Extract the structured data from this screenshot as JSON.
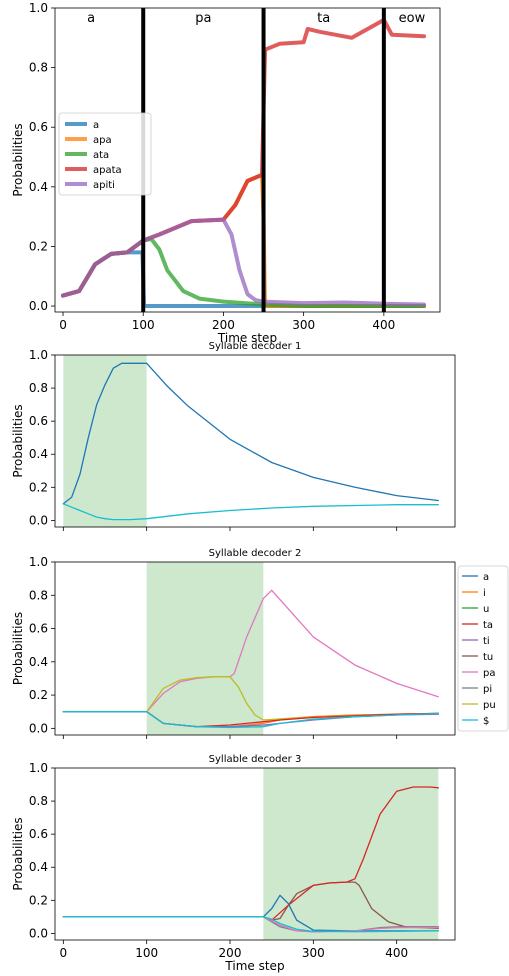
{
  "chart_data": [
    {
      "type": "line",
      "xlabel": "Time step",
      "ylabel": "Probabilities",
      "xlim": [
        -10,
        470
      ],
      "ylim": [
        -0.02,
        1.0
      ],
      "xticks": [
        0,
        100,
        200,
        300,
        400
      ],
      "yticks": [
        0.0,
        0.2,
        0.4,
        0.6,
        0.8,
        1.0
      ],
      "legend_placement": "center-left",
      "segments": [
        {
          "label": "a",
          "x": 35
        },
        {
          "label": "pa",
          "x": 175
        },
        {
          "label": "ta",
          "x": 325
        },
        {
          "label": "eow",
          "x": 435
        }
      ],
      "boundaries": [
        100,
        250,
        400
      ],
      "series": [
        {
          "name": "a",
          "color": "#1f77b4",
          "x": [
            0,
            20,
            40,
            60,
            80,
            99,
            100,
            101,
            450
          ],
          "y": [
            0.035,
            0.05,
            0.14,
            0.175,
            0.18,
            0.18,
            0.1,
            0.0,
            0.0
          ]
        },
        {
          "name": "apa",
          "color": "#ff7f0e",
          "x": [
            0,
            20,
            40,
            60,
            80,
            100,
            120,
            160,
            200,
            215,
            230,
            248,
            250,
            252,
            300,
            450
          ],
          "y": [
            0.035,
            0.05,
            0.14,
            0.175,
            0.18,
            0.22,
            0.24,
            0.285,
            0.29,
            0.34,
            0.42,
            0.44,
            0.3,
            0.0,
            0.0,
            0.0
          ]
        },
        {
          "name": "ata",
          "color": "#2ca02c",
          "x": [
            0,
            20,
            40,
            60,
            80,
            100,
            110,
            120,
            130,
            150,
            170,
            200,
            250,
            300,
            450
          ],
          "y": [
            0.035,
            0.05,
            0.14,
            0.175,
            0.18,
            0.22,
            0.225,
            0.19,
            0.12,
            0.05,
            0.025,
            0.015,
            0.005,
            0.0,
            0.0
          ]
        },
        {
          "name": "apata",
          "color": "#d62728",
          "x": [
            0,
            20,
            40,
            60,
            80,
            100,
            120,
            160,
            200,
            215,
            230,
            248,
            252,
            270,
            300,
            305,
            320,
            360,
            380,
            400,
            410,
            450
          ],
          "y": [
            0.035,
            0.05,
            0.14,
            0.175,
            0.18,
            0.22,
            0.24,
            0.285,
            0.29,
            0.34,
            0.42,
            0.44,
            0.86,
            0.88,
            0.885,
            0.93,
            0.92,
            0.9,
            0.93,
            0.96,
            0.91,
            0.905
          ]
        },
        {
          "name": "apiti",
          "color": "#9467bd",
          "x": [
            0,
            20,
            40,
            60,
            80,
            100,
            120,
            160,
            200,
            210,
            220,
            230,
            240,
            250,
            300,
            350,
            400,
            450
          ],
          "y": [
            0.035,
            0.05,
            0.14,
            0.175,
            0.18,
            0.22,
            0.24,
            0.285,
            0.29,
            0.24,
            0.12,
            0.04,
            0.02,
            0.015,
            0.01,
            0.012,
            0.008,
            0.005
          ]
        }
      ]
    },
    {
      "type": "line",
      "title": "Syllable decoder 1",
      "ylabel": "Probabilities",
      "xlim": [
        -10,
        470
      ],
      "ylim": [
        -0.04,
        1.0
      ],
      "xticks": [
        0,
        100,
        200,
        300,
        400
      ],
      "yticks": [
        0.0,
        0.2,
        0.4,
        0.6,
        0.8,
        1.0
      ],
      "highlight": [
        0,
        100
      ],
      "series": [
        {
          "name": "a",
          "color": "#1f77b4",
          "x": [
            0,
            10,
            20,
            30,
            40,
            50,
            60,
            70,
            80,
            90,
            100,
            125,
            150,
            200,
            250,
            300,
            350,
            400,
            450
          ],
          "y": [
            0.1,
            0.14,
            0.28,
            0.5,
            0.7,
            0.82,
            0.92,
            0.95,
            0.95,
            0.95,
            0.95,
            0.81,
            0.69,
            0.49,
            0.35,
            0.26,
            0.2,
            0.15,
            0.12
          ]
        },
        {
          "name": "$",
          "color": "#17becf",
          "x": [
            0,
            10,
            20,
            30,
            40,
            50,
            60,
            80,
            100,
            150,
            200,
            250,
            300,
            350,
            400,
            450
          ],
          "y": [
            0.1,
            0.08,
            0.06,
            0.04,
            0.02,
            0.01,
            0.005,
            0.005,
            0.01,
            0.04,
            0.06,
            0.075,
            0.085,
            0.09,
            0.095,
            0.095
          ]
        }
      ]
    },
    {
      "type": "line",
      "title": "Syllable decoder 2",
      "ylabel": "Probabilities",
      "xlim": [
        -10,
        470
      ],
      "ylim": [
        -0.04,
        1.0
      ],
      "xticks": [
        0,
        100,
        200,
        300,
        400
      ],
      "yticks": [
        0.0,
        0.2,
        0.4,
        0.6,
        0.8,
        1.0
      ],
      "highlight": [
        100,
        240
      ],
      "legend_placement": "right",
      "legend": [
        {
          "name": "a",
          "color": "#1f77b4"
        },
        {
          "name": "i",
          "color": "#ff7f0e"
        },
        {
          "name": "u",
          "color": "#2ca02c"
        },
        {
          "name": "ta",
          "color": "#d62728"
        },
        {
          "name": "ti",
          "color": "#9467bd"
        },
        {
          "name": "tu",
          "color": "#8c564b"
        },
        {
          "name": "pa",
          "color": "#e377c2"
        },
        {
          "name": "pi",
          "color": "#7f7f7f"
        },
        {
          "name": "pu",
          "color": "#bcbd22"
        },
        {
          "name": "$",
          "color": "#17becf"
        }
      ],
      "series": [
        {
          "name": "pa",
          "color": "#e377c2",
          "x": [
            0,
            100,
            120,
            140,
            160,
            180,
            200,
            205,
            220,
            240,
            250,
            300,
            350,
            400,
            450
          ],
          "y": [
            0.1,
            0.1,
            0.21,
            0.28,
            0.3,
            0.31,
            0.31,
            0.33,
            0.55,
            0.78,
            0.83,
            0.55,
            0.38,
            0.27,
            0.19
          ]
        },
        {
          "name": "pu",
          "color": "#bcbd22",
          "x": [
            0,
            100,
            110,
            120,
            140,
            160,
            180,
            200,
            210,
            220,
            230,
            240,
            300,
            350,
            400,
            450
          ],
          "y": [
            0.1,
            0.1,
            0.17,
            0.24,
            0.29,
            0.305,
            0.31,
            0.31,
            0.25,
            0.15,
            0.08,
            0.05,
            0.07,
            0.08,
            0.085,
            0.09
          ]
        },
        {
          "name": "i",
          "color": "#ff7f0e",
          "x": [
            0,
            100,
            120,
            160,
            200,
            240,
            260,
            300,
            350,
            400,
            450
          ],
          "y": [
            0.1,
            0.1,
            0.03,
            0.01,
            0.01,
            0.03,
            0.05,
            0.07,
            0.08,
            0.085,
            0.09
          ]
        },
        {
          "name": "ta",
          "color": "#d62728",
          "x": [
            0,
            100,
            120,
            160,
            200,
            240,
            260,
            300,
            350,
            400,
            450
          ],
          "y": [
            0.1,
            0.1,
            0.03,
            0.01,
            0.02,
            0.04,
            0.05,
            0.065,
            0.075,
            0.085,
            0.09
          ]
        },
        {
          "name": "ti",
          "color": "#9467bd",
          "x": [
            0,
            100,
            120,
            160,
            200,
            240,
            260,
            300,
            350,
            400,
            450
          ],
          "y": [
            0.1,
            0.1,
            0.03,
            0.01,
            0.01,
            0.02,
            0.03,
            0.05,
            0.07,
            0.08,
            0.085
          ]
        },
        {
          "name": "$",
          "color": "#17becf",
          "x": [
            0,
            100,
            120,
            160,
            200,
            240,
            260,
            300,
            350,
            400,
            450
          ],
          "y": [
            0.1,
            0.1,
            0.03,
            0.01,
            0.005,
            0.01,
            0.03,
            0.055,
            0.07,
            0.08,
            0.09
          ]
        }
      ]
    },
    {
      "type": "line",
      "title": "Syllable decoder 3",
      "xlabel": "Time step",
      "ylabel": "Probabilities",
      "xlim": [
        -10,
        470
      ],
      "ylim": [
        -0.04,
        1.0
      ],
      "xticks": [
        0,
        100,
        200,
        300,
        400
      ],
      "yticks": [
        0.0,
        0.2,
        0.4,
        0.6,
        0.8,
        1.0
      ],
      "highlight": [
        240,
        450
      ],
      "series": [
        {
          "name": "tu",
          "color": "#8c564b",
          "x": [
            0,
            240,
            250,
            260,
            270,
            280,
            300,
            320,
            340,
            350,
            355,
            370,
            390,
            410,
            450
          ],
          "y": [
            0.1,
            0.1,
            0.08,
            0.09,
            0.17,
            0.24,
            0.29,
            0.305,
            0.31,
            0.31,
            0.29,
            0.15,
            0.07,
            0.04,
            0.03
          ]
        },
        {
          "name": "ta",
          "color": "#d62728",
          "x": [
            0,
            240,
            250,
            270,
            300,
            320,
            340,
            350,
            360,
            380,
            400,
            420,
            440,
            450
          ],
          "y": [
            0.1,
            0.1,
            0.08,
            0.17,
            0.29,
            0.305,
            0.31,
            0.33,
            0.45,
            0.72,
            0.86,
            0.885,
            0.885,
            0.88
          ]
        },
        {
          "name": "a",
          "color": "#1f77b4",
          "x": [
            0,
            240,
            250,
            260,
            270,
            280,
            300,
            350,
            400,
            450
          ],
          "y": [
            0.1,
            0.1,
            0.15,
            0.23,
            0.18,
            0.08,
            0.02,
            0.015,
            0.015,
            0.015
          ]
        },
        {
          "name": "pi",
          "color": "#7f7f7f",
          "x": [
            0,
            240,
            260,
            280,
            300,
            350,
            380,
            400,
            450
          ],
          "y": [
            0.1,
            0.1,
            0.04,
            0.015,
            0.01,
            0.015,
            0.035,
            0.04,
            0.04
          ]
        },
        {
          "name": "ti",
          "color": "#e377c2",
          "x": [
            0,
            240,
            260,
            280,
            300,
            350,
            380,
            400,
            450
          ],
          "y": [
            0.1,
            0.1,
            0.05,
            0.015,
            0.01,
            0.015,
            0.03,
            0.035,
            0.035
          ]
        },
        {
          "name": "$",
          "color": "#17becf",
          "x": [
            0,
            240,
            250,
            260,
            280,
            300,
            350,
            400,
            450
          ],
          "y": [
            0.1,
            0.1,
            0.085,
            0.06,
            0.025,
            0.012,
            0.01,
            0.012,
            0.015
          ]
        }
      ]
    }
  ]
}
